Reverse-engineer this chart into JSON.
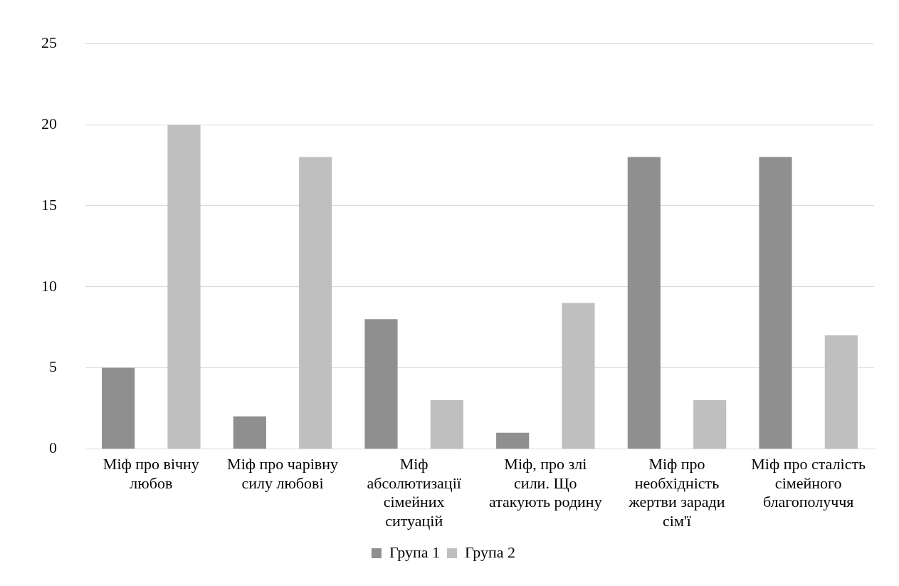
{
  "chart_data": {
    "type": "bar",
    "categories": [
      "Міф про вічну любов",
      "Міф про чарівну силу любові",
      "Міф абсолютизації сімейних ситуацій",
      "Міф, про злі сили. Що атакують родину",
      "Міф про необхідність жертви заради сім'ї",
      "Міф про сталість сімейного благополуччя"
    ],
    "series": [
      {
        "name": "Група 1",
        "color": "#8f8f8f",
        "values": [
          5,
          2,
          8,
          1,
          18,
          18
        ]
      },
      {
        "name": "Група 2",
        "color": "#bfbfbf",
        "values": [
          20,
          18,
          3,
          9,
          3,
          7
        ]
      }
    ],
    "ylim": [
      0,
      25
    ],
    "yticks": [
      0,
      5,
      10,
      15,
      20,
      25
    ],
    "grid": "y",
    "legend": "bottom"
  }
}
